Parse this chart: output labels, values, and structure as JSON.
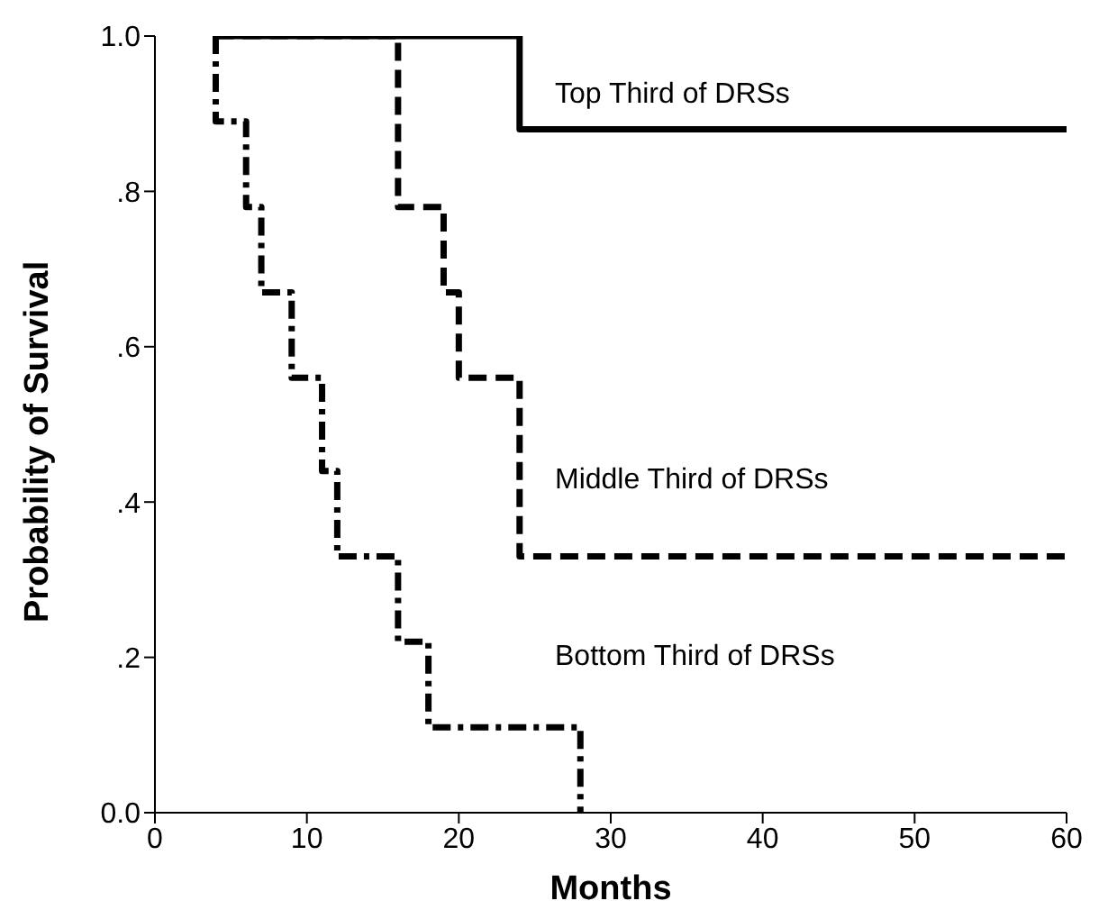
{
  "chart_data": {
    "type": "step",
    "xlabel": "Months",
    "ylabel": "Probability of Survival",
    "xlim": [
      0,
      60
    ],
    "xticks": [
      0,
      10,
      20,
      30,
      40,
      50,
      60
    ],
    "ylim": [
      0,
      1
    ],
    "yticks": [
      {
        "value": 0,
        "label": "0.0"
      },
      {
        "value": 0.2,
        "label": ".2"
      },
      {
        "value": 0.4,
        "label": ".4"
      },
      {
        "value": 0.6,
        "label": ".6"
      },
      {
        "value": 0.8,
        "label": ".8"
      },
      {
        "value": 1,
        "label": "1.0"
      }
    ],
    "grid": false,
    "legend": false,
    "marker": "none",
    "series": [
      {
        "name": "Top Third of DRSs",
        "color": "#000000",
        "line_style": "solid",
        "x": [
          4,
          24,
          60
        ],
        "values": [
          1,
          0.88,
          0.88
        ]
      },
      {
        "name": "Middle Third of DRSs",
        "color": "#000000",
        "line_style": "dashed",
        "x": [
          4,
          16,
          19,
          20,
          24,
          60
        ],
        "values": [
          1,
          0.78,
          0.67,
          0.56,
          0.33,
          0.33
        ]
      },
      {
        "name": "Bottom Third of DRSs",
        "color": "#000000",
        "line_style": "dashdot",
        "x": [
          4,
          4,
          6,
          7,
          9,
          11,
          12,
          16,
          18,
          28
        ],
        "values": [
          1,
          0.89,
          0.78,
          0.67,
          0.56,
          0.44,
          0.33,
          0.22,
          0.11,
          0
        ]
      }
    ]
  }
}
